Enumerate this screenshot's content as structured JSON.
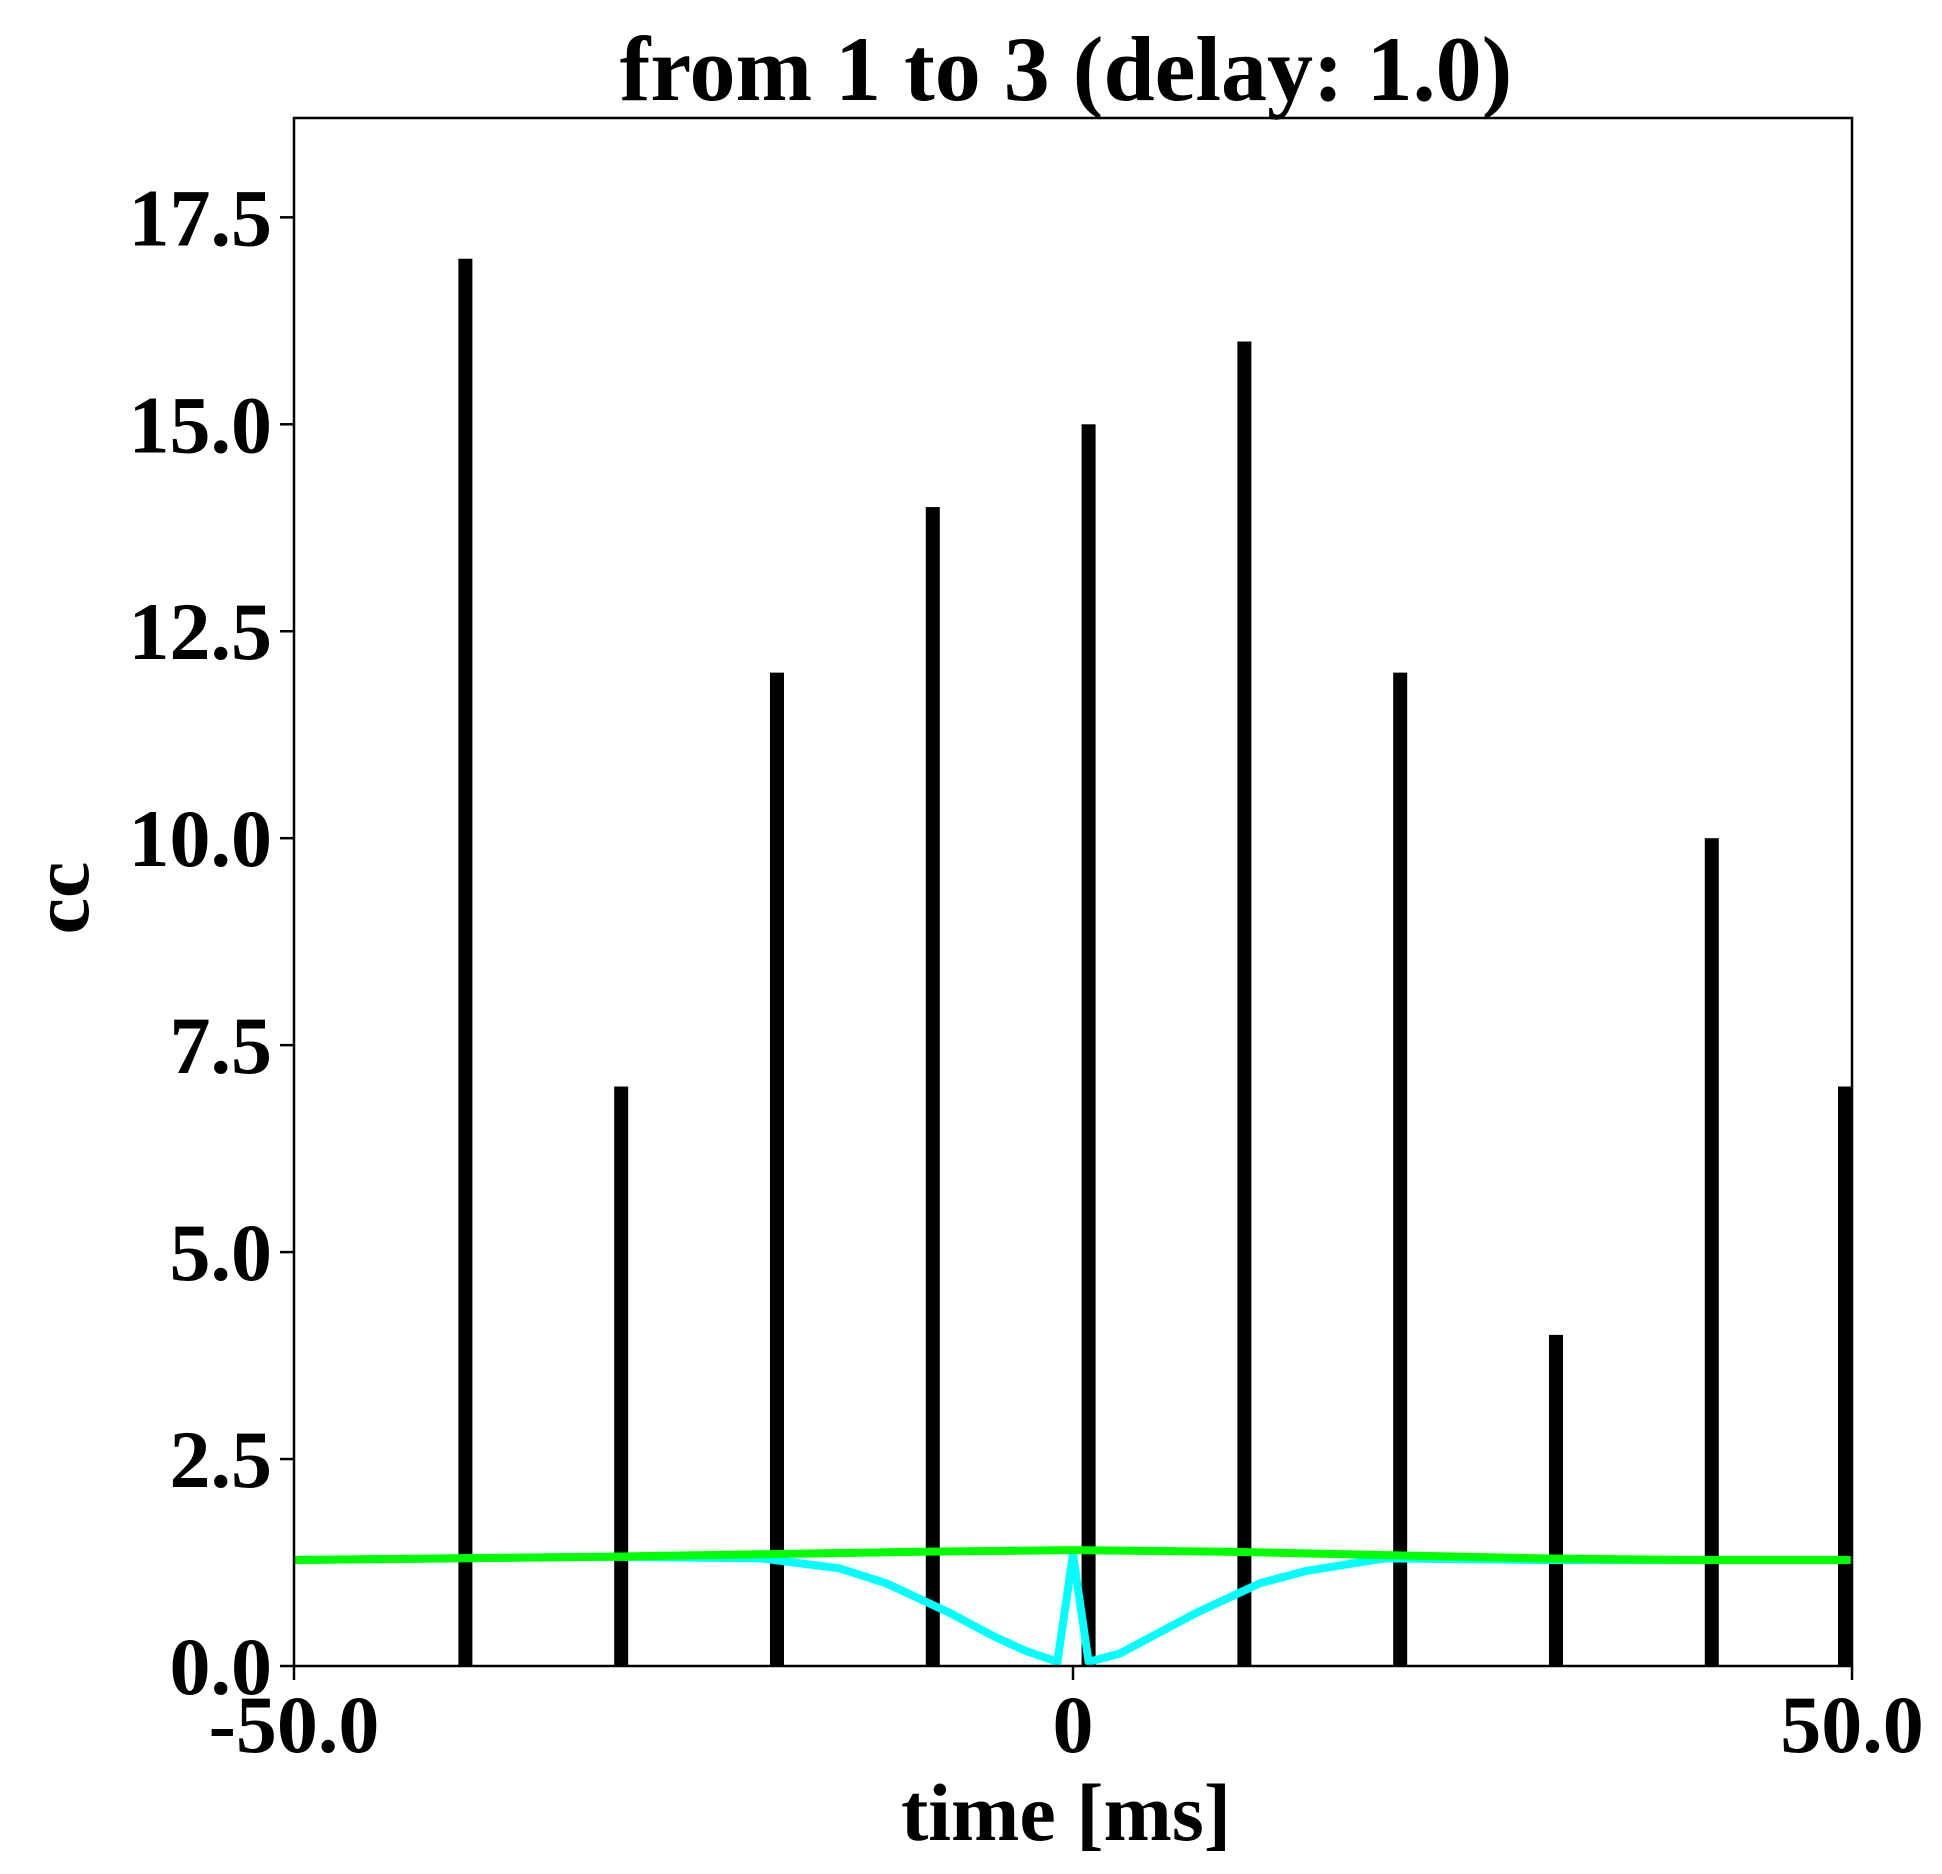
{
  "chart_data": {
    "type": "bar",
    "title": "from 1 to 3 (delay: 1.0)",
    "xlabel": "time [ms]",
    "ylabel": "cc",
    "xlim": [
      -50.0,
      50.0
    ],
    "ylim": [
      0,
      18.7
    ],
    "x_ticks": [
      {
        "value": -50.0,
        "label": "-50.0"
      },
      {
        "value": 0,
        "label": "0"
      },
      {
        "value": 50.0,
        "label": "50.0"
      }
    ],
    "y_ticks": [
      {
        "value": 0.0,
        "label": "0.0"
      },
      {
        "value": 2.5,
        "label": "2.5"
      },
      {
        "value": 5.0,
        "label": "5.0"
      },
      {
        "value": 7.5,
        "label": "7.5"
      },
      {
        "value": 10.0,
        "label": "10.0"
      },
      {
        "value": 12.5,
        "label": "12.5"
      },
      {
        "value": 15.0,
        "label": "15.0"
      },
      {
        "value": 17.5,
        "label": "17.5"
      }
    ],
    "grid": false,
    "legend": "none",
    "bars": {
      "color": "#000000",
      "x": [
        -39,
        -29,
        -19,
        -9,
        1,
        11,
        21,
        31,
        41,
        50
      ],
      "values": [
        17,
        7,
        12,
        14,
        15,
        16,
        12,
        4,
        10,
        7
      ]
    },
    "series": [
      {
        "type": "line",
        "color": "#00ffff",
        "x": [
          -50,
          -40,
          -30,
          -20,
          -15,
          -12,
          -8,
          -5,
          -3,
          -1,
          0,
          1,
          3,
          5,
          8,
          12,
          15,
          20,
          30,
          40,
          50
        ],
        "y": [
          1.28,
          1.3,
          1.32,
          1.3,
          1.18,
          1.0,
          0.65,
          0.35,
          0.18,
          0.05,
          1.35,
          0.05,
          0.15,
          0.35,
          0.65,
          1.0,
          1.15,
          1.3,
          1.28,
          1.28,
          1.28
        ]
      },
      {
        "type": "line",
        "color": "#00ff00",
        "x": [
          -50,
          -40,
          -30,
          -20,
          -10,
          0,
          10,
          20,
          30,
          40,
          50
        ],
        "y": [
          1.28,
          1.3,
          1.32,
          1.35,
          1.38,
          1.4,
          1.38,
          1.34,
          1.3,
          1.28,
          1.28
        ]
      }
    ]
  }
}
